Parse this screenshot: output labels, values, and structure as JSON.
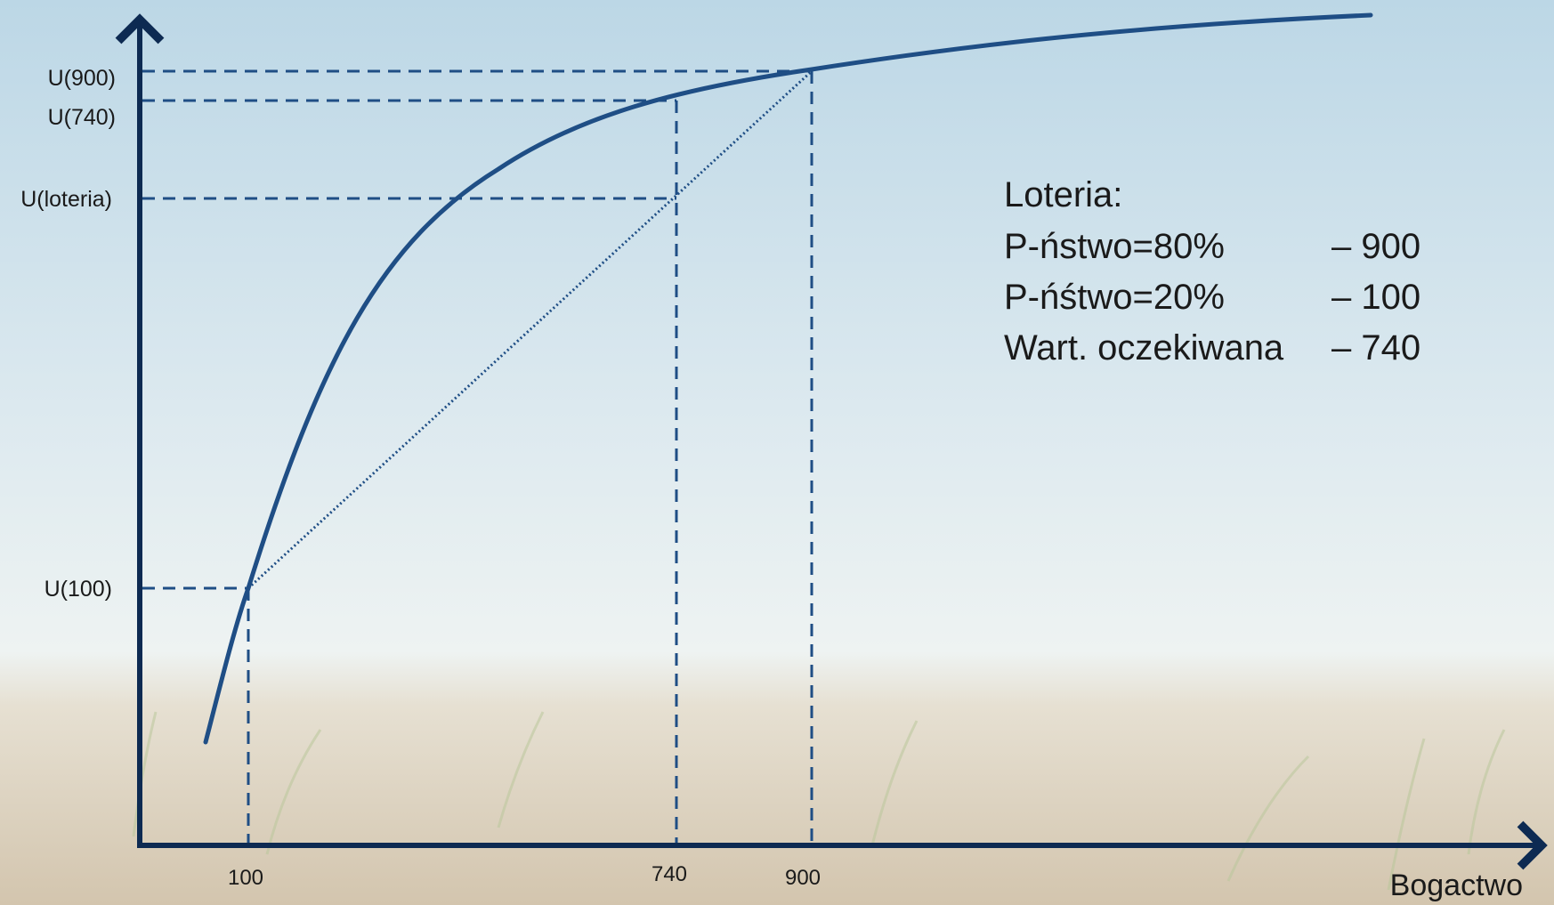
{
  "colors": {
    "curve": "#1f4e85",
    "axis": "#0d2a52",
    "guides": "#1f4e85",
    "sky_top": "#c2dbe8",
    "sky_bottom": "#eef3f3",
    "ground": "#d8cbb6"
  },
  "axes": {
    "x_title": "Bogactwo"
  },
  "y_labels": {
    "u900": "U(900)",
    "u740": "U(740)",
    "uloteria": "U(loteria)",
    "u100": "U(100)"
  },
  "x_labels": {
    "x100": "100",
    "x740": "740",
    "x900": "900"
  },
  "lottery": {
    "title": "Loteria:",
    "rows": [
      {
        "label": "P-ństwo=80%",
        "value": "– 900"
      },
      {
        "label": "P-ńśtwo=20%",
        "value": "– 100"
      },
      {
        "label": "Wart. oczekiwana",
        "value": "– 740"
      }
    ]
  },
  "chart_data": {
    "type": "line",
    "series": [
      {
        "style": "solid",
        "shape": "concave utility function"
      },
      {
        "style": "dotted",
        "shape": "chord from U(100) to U(900)"
      }
    ],
    "x_marks": [
      100,
      740,
      900
    ],
    "y_marks": [
      "U(100)",
      "U(loteria)",
      "U(740)",
      "U(900)"
    ]
  }
}
